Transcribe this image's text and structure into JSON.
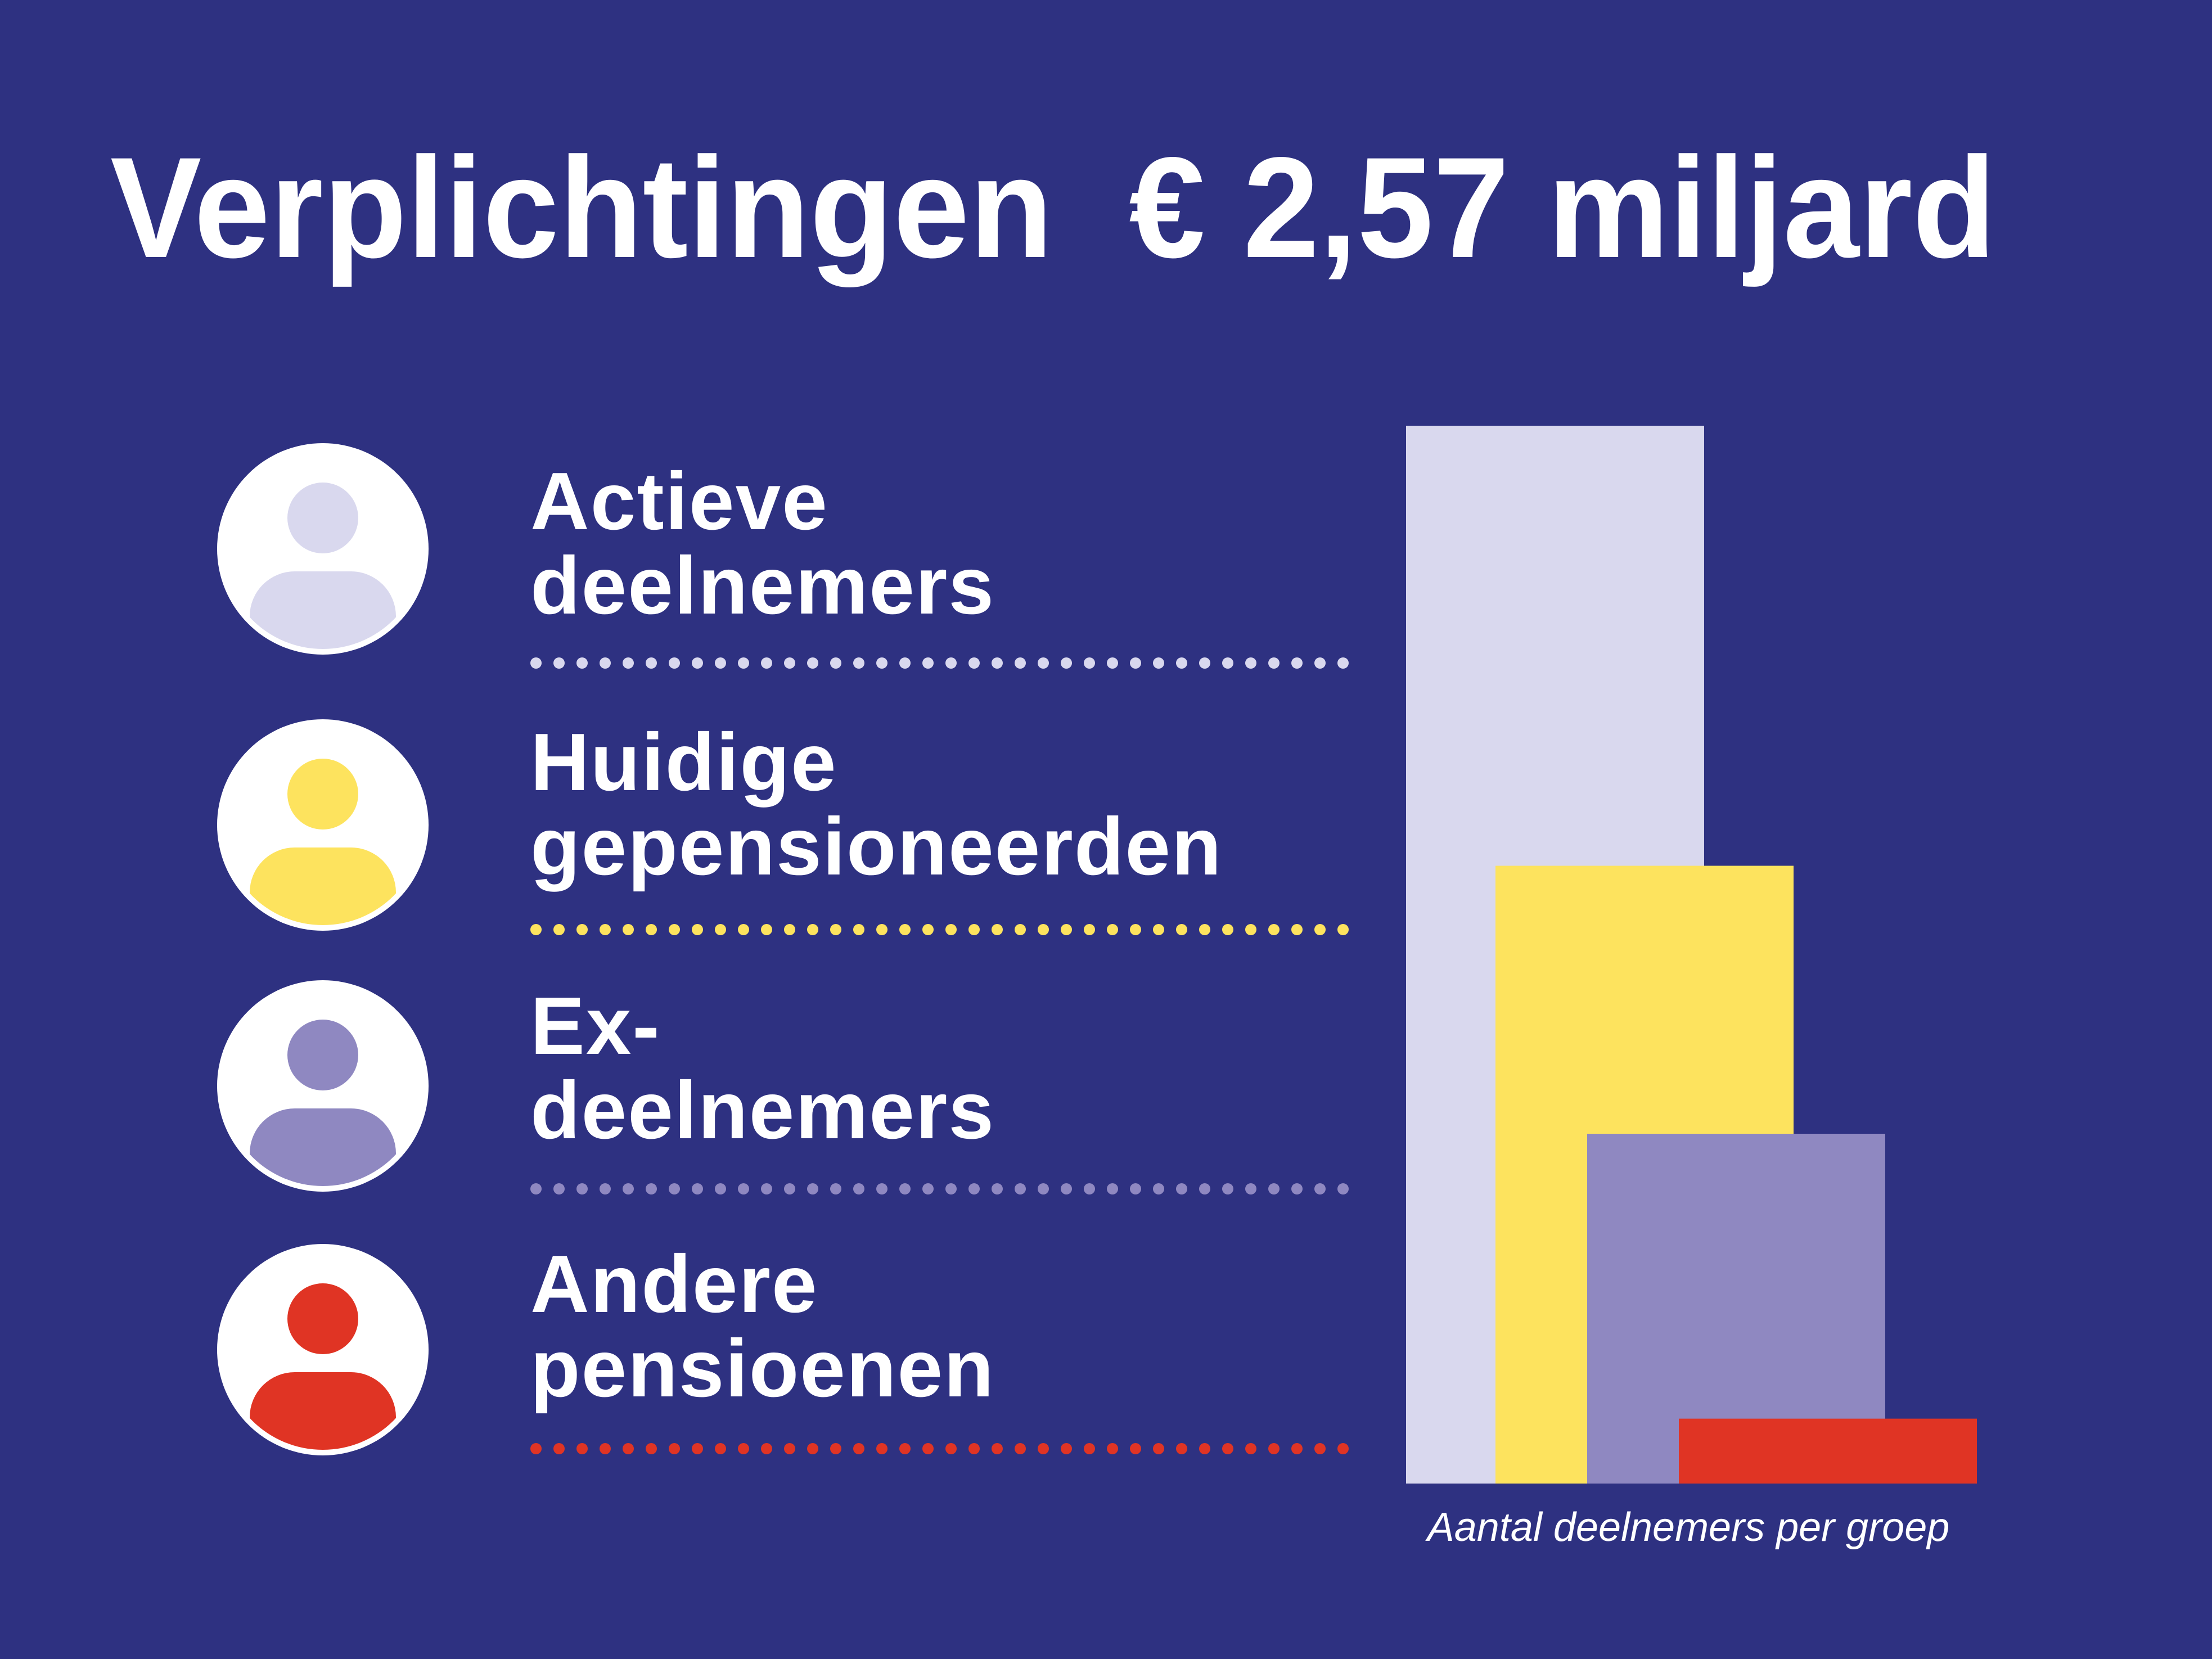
{
  "chart_data": {
    "type": "bar",
    "title": "Verplichtingen  € 2,57 miljard",
    "categories": [
      "Actieve\ndeelnemers",
      "Huidige\ngepensioneerden",
      "Ex-\ndeelnemers",
      "Andere\npensioenen"
    ],
    "values": [
      750,
      438,
      248,
      46
    ],
    "colors": [
      "#d9d8ee",
      "#fde35e",
      "#8f88c1",
      "#e03424"
    ],
    "ylim": [
      0,
      750
    ],
    "xlabel": "Aantal deelnemers per groep"
  }
}
